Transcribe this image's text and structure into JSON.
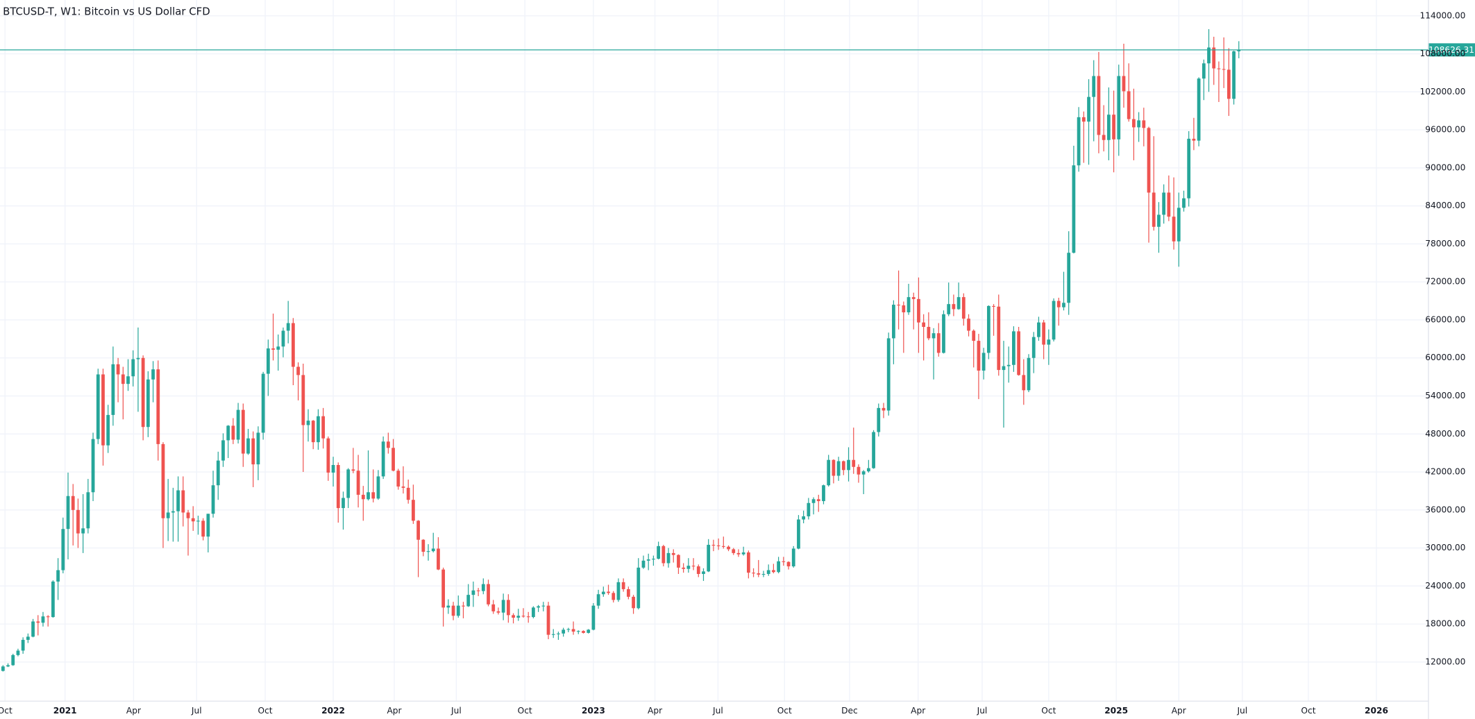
{
  "chart_data": {
    "type": "candlestick",
    "title": "BTCUSD-T, W1: Bitcoin vs US Dollar CFD",
    "up_color": "#26a69a",
    "down_color": "#ef5350",
    "grid": true,
    "price_line": true,
    "xlim": [
      -0.6,
      284.8
    ],
    "xticks": [
      {
        "value": 0.4,
        "label": "Oct"
      },
      {
        "value": 12.4,
        "label": "2021"
      },
      {
        "value": 26.1,
        "label": "Apr"
      },
      {
        "value": 38.7,
        "label": "Jul"
      },
      {
        "value": 52.4,
        "label": "Oct"
      },
      {
        "value": 66,
        "label": "2022"
      },
      {
        "value": 78.2,
        "label": "Apr"
      },
      {
        "value": 90.6,
        "label": "Jul"
      },
      {
        "value": 104.3,
        "label": "Oct"
      },
      {
        "value": 118,
        "label": "2023"
      },
      {
        "value": 130.3,
        "label": "Apr"
      },
      {
        "value": 142.9,
        "label": "Jul"
      },
      {
        "value": 156.2,
        "label": "Oct"
      },
      {
        "value": 169.2,
        "label": "Dec"
      },
      {
        "value": 182.9,
        "label": "Apr"
      },
      {
        "value": 195.7,
        "label": "Jul"
      },
      {
        "value": 209,
        "label": "Oct"
      },
      {
        "value": 222.5,
        "label": "2025"
      },
      {
        "value": 235,
        "label": "Apr"
      },
      {
        "value": 247.7,
        "label": "Jul"
      },
      {
        "value": 260.9,
        "label": "Oct"
      },
      {
        "value": 274.5,
        "label": "2026"
      }
    ],
    "ylim": [
      5900,
      116500
    ],
    "yticks": [
      {
        "value": 12000,
        "label": "12000.00"
      },
      {
        "value": 18000,
        "label": "18000.00"
      },
      {
        "value": 24000,
        "label": "24000.00"
      },
      {
        "value": 30000,
        "label": "30000.00"
      },
      {
        "value": 36000,
        "label": "36000.00"
      },
      {
        "value": 42000,
        "label": "42000.00"
      },
      {
        "value": 48000,
        "label": "48000.00"
      },
      {
        "value": 54000,
        "label": "54000.00"
      },
      {
        "value": 60000,
        "label": "60000.00"
      },
      {
        "value": 66000,
        "label": "66000.00"
      },
      {
        "value": 72000,
        "label": "72000.00"
      },
      {
        "value": 78000,
        "label": "78000.00"
      },
      {
        "value": 84000,
        "label": "84000.00"
      },
      {
        "value": 90000,
        "label": "90000.00"
      },
      {
        "value": 96000,
        "label": "96000.00"
      },
      {
        "value": 102000,
        "label": "102000.00"
      },
      {
        "value": 108000,
        "label": "108000.00"
      },
      {
        "value": 114000,
        "label": "114000.00"
      }
    ],
    "open": [
      10600,
      11300,
      11500,
      13100,
      13800,
      15500,
      16000,
      18400,
      18200,
      19200,
      19100,
      24700,
      26500,
      33000,
      38200,
      36000,
      32300,
      33100,
      38800,
      47200,
      57400,
      46200,
      51000,
      59000,
      57400,
      55900,
      57100,
      59800,
      60000,
      49100,
      56600,
      58200,
      46400,
      34700,
      35600,
      35800,
      39100,
      35600,
      34700,
      34200,
      34300,
      31800,
      35400,
      39900,
      43800,
      47000,
      49300,
      47100,
      51800,
      44900,
      47300,
      43200,
      48200,
      57500,
      61500,
      61300,
      61800,
      64300,
      65500,
      58600,
      57300,
      49400,
      50100,
      46700,
      50800,
      47300,
      41900,
      43100,
      36300,
      37900,
      42400,
      42200,
      38400,
      37700,
      38800,
      37800,
      41300,
      46800,
      45800,
      42200,
      39700,
      39500,
      37600,
      34300,
      31300,
      29400,
      29500,
      29900,
      26600,
      20600,
      20900,
      19300,
      20900,
      20800,
      22600,
      23300,
      23200,
      24300,
      21100,
      20000,
      19800,
      21800,
      19400,
      19000,
      19300,
      19200,
      19100,
      20600,
      20800,
      20900,
      16300,
      16400,
      16500,
      17100,
      17200,
      16800,
      16900,
      16600,
      17100,
      20900,
      22700,
      23100,
      22900,
      21800,
      24600,
      23500,
      22300,
      20500,
      26900,
      28000,
      28200,
      28300,
      30300,
      27600,
      29200,
      28900,
      26900,
      26700,
      27200,
      27100,
      25900,
      26300,
      30500,
      30400,
      30300,
      30200,
      29800,
      29200,
      29000,
      29300,
      26100,
      26000,
      25800,
      25900,
      26500,
      26200,
      27900,
      27800,
      27100,
      29900,
      34500,
      35000,
      37100,
      37700,
      37400,
      39900,
      43900,
      41400,
      43700,
      42300,
      43900,
      42800,
      41600,
      42100,
      42600,
      48300,
      52100,
      51700,
      63100,
      68400,
      68300,
      67200,
      69600,
      69300,
      65600,
      64900,
      63100,
      63900,
      60800,
      66900,
      68500,
      67700,
      69600,
      66200,
      64300,
      62700,
      58000,
      60800,
      68200,
      68100,
      58100,
      58700,
      58900,
      64200,
      57300,
      54900,
      60000,
      63300,
      65600,
      62100,
      62900,
      69000,
      68000,
      68700,
      76600,
      90400,
      98000,
      97300,
      101200,
      104500,
      95200,
      94400,
      98400,
      94500,
      104500,
      102100,
      97700,
      96400,
      97500,
      96300,
      86100,
      80700,
      82600,
      86100,
      82300,
      78400,
      83700,
      85200,
      94600,
      94300,
      104100,
      106500,
      109000,
      105700,
      105600,
      105500,
      100900,
      108400
    ],
    "high": [
      11500,
      11800,
      13300,
      14100,
      15900,
      16500,
      18800,
      19400,
      19900,
      19400,
      24900,
      28400,
      34800,
      41900,
      40100,
      37800,
      38500,
      40900,
      48200,
      58300,
      58300,
      52600,
      61800,
      60000,
      58600,
      59800,
      61200,
      64800,
      60400,
      57900,
      59500,
      59600,
      46700,
      40900,
      39500,
      41300,
      41300,
      36000,
      36600,
      35100,
      34700,
      35400,
      42200,
      45200,
      48100,
      49400,
      50500,
      52900,
      52800,
      48800,
      48400,
      49200,
      57800,
      62900,
      67000,
      63700,
      64800,
      69000,
      66300,
      59300,
      59100,
      51900,
      50200,
      51900,
      52100,
      47600,
      44400,
      43500,
      38900,
      42600,
      45800,
      44700,
      39800,
      45400,
      42400,
      42300,
      47600,
      48200,
      47200,
      42500,
      42900,
      40800,
      40000,
      34400,
      31400,
      30600,
      32400,
      31700,
      26900,
      21900,
      21500,
      22500,
      21500,
      24300,
      24700,
      23700,
      25200,
      25000,
      21800,
      20600,
      22800,
      22700,
      19700,
      20400,
      20500,
      19900,
      20800,
      21000,
      21500,
      21500,
      17200,
      16800,
      17400,
      17400,
      18400,
      17000,
      17000,
      17200,
      21300,
      23400,
      23900,
      24200,
      23200,
      25200,
      25200,
      23900,
      22600,
      28400,
      28800,
      29100,
      28800,
      31000,
      30500,
      30000,
      29800,
      29000,
      27600,
      28400,
      28400,
      27400,
      26800,
      31400,
      31300,
      31500,
      31800,
      30400,
      30000,
      29800,
      30200,
      29600,
      26800,
      28100,
      26400,
      27400,
      27500,
      28600,
      28600,
      27900,
      30300,
      35200,
      35900,
      37900,
      38000,
      38400,
      40000,
      44700,
      44000,
      44400,
      43800,
      45900,
      49000,
      43200,
      42300,
      43900,
      48600,
      52800,
      52900,
      64000,
      69100,
      73800,
      68900,
      71700,
      70300,
      72700,
      66900,
      67200,
      64700,
      65500,
      67500,
      71900,
      70000,
      71900,
      70200,
      66900,
      64500,
      63800,
      61600,
      68300,
      68500,
      70000,
      62700,
      61800,
      65000,
      64900,
      59800,
      60600,
      64100,
      66500,
      66000,
      64500,
      69400,
      69500,
      73600,
      80000,
      93500,
      99600,
      98900,
      104000,
      107000,
      108300,
      99900,
      102700,
      102200,
      106300,
      109600,
      106500,
      102500,
      98800,
      99500,
      96500,
      95000,
      84600,
      87400,
      88800,
      88500,
      86100,
      86400,
      95800,
      97900,
      104300,
      107100,
      111900,
      110700,
      106800,
      110600,
      108900,
      108500,
      110000
    ],
    "low": [
      10500,
      11200,
      11400,
      12900,
      13300,
      15000,
      15900,
      16200,
      17600,
      17600,
      19000,
      21800,
      26000,
      28200,
      30400,
      30000,
      29200,
      32300,
      37400,
      46400,
      43000,
      45000,
      49300,
      53000,
      50300,
      54800,
      55500,
      51500,
      47000,
      47500,
      53000,
      43800,
      30000,
      31100,
      31000,
      31000,
      33400,
      28800,
      32700,
      32100,
      31200,
      29300,
      34800,
      37600,
      42800,
      44200,
      46400,
      46500,
      42800,
      44700,
      39600,
      40700,
      47100,
      54000,
      59600,
      58000,
      60100,
      62300,
      55700,
      53300,
      42000,
      46800,
      45600,
      45500,
      45700,
      40600,
      39700,
      34000,
      32900,
      36300,
      41800,
      36400,
      34300,
      37500,
      37200,
      37600,
      40900,
      44900,
      42100,
      39200,
      38600,
      37000,
      33800,
      25400,
      28700,
      28000,
      29300,
      26500,
      17600,
      19600,
      18600,
      19000,
      18900,
      20700,
      20700,
      22400,
      22700,
      20800,
      19600,
      19500,
      18600,
      18200,
      18100,
      18500,
      19000,
      18200,
      18900,
      19900,
      20000,
      15600,
      15800,
      15500,
      16000,
      16700,
      16300,
      16400,
      16500,
      16500,
      17000,
      20400,
      22300,
      22600,
      21400,
      21500,
      23100,
      21900,
      19600,
      20300,
      26700,
      26500,
      27200,
      28200,
      27100,
      26900,
      27700,
      25900,
      26100,
      26100,
      26500,
      25400,
      24800,
      26200,
      29500,
      29700,
      29900,
      29500,
      28900,
      28600,
      28800,
      25200,
      25400,
      25400,
      25400,
      25600,
      26000,
      26000,
      27200,
      26600,
      26900,
      29800,
      33900,
      34500,
      35300,
      35700,
      36900,
      39700,
      40200,
      40600,
      41500,
      40500,
      41700,
      40300,
      38500,
      41900,
      42500,
      47600,
      50500,
      50900,
      59000,
      64500,
      60800,
      66800,
      64500,
      60800,
      59600,
      62800,
      56600,
      60200,
      60700,
      66600,
      66600,
      67600,
      65100,
      63400,
      58500,
      53500,
      56600,
      59800,
      63500,
      57200,
      49000,
      56100,
      57800,
      57200,
      52600,
      54600,
      57600,
      62700,
      59800,
      58900,
      62600,
      65100,
      67500,
      66800,
      76500,
      89400,
      90800,
      90500,
      94200,
      92300,
      92600,
      91200,
      89300,
      91900,
      99500,
      97300,
      91200,
      94100,
      93400,
      78200,
      80100,
      76600,
      81200,
      81600,
      77100,
      74400,
      83100,
      83900,
      92800,
      93400,
      100700,
      102000,
      103100,
      100400,
      102600,
      98200,
      100000,
      107300
    ],
    "close": [
      11300,
      11500,
      13100,
      13800,
      15500,
      16000,
      18400,
      18200,
      19200,
      19100,
      24700,
      26500,
      33000,
      38200,
      36000,
      32300,
      33100,
      38800,
      47200,
      57400,
      46200,
      51000,
      59000,
      57400,
      55900,
      57100,
      59800,
      60000,
      49100,
      56600,
      58200,
      46400,
      34700,
      35600,
      35800,
      39100,
      35600,
      34700,
      34200,
      34300,
      31800,
      35400,
      39900,
      43800,
      47000,
      49300,
      47100,
      51800,
      44900,
      47300,
      43200,
      48200,
      57500,
      61500,
      61300,
      61800,
      64300,
      65500,
      58600,
      57300,
      49400,
      50100,
      46700,
      50800,
      47300,
      41900,
      43100,
      36300,
      37900,
      42400,
      42200,
      38400,
      37700,
      38800,
      37800,
      41300,
      46800,
      45800,
      42200,
      39700,
      39500,
      37600,
      34300,
      31300,
      29400,
      29500,
      29900,
      26600,
      20600,
      20900,
      19300,
      20900,
      20800,
      22600,
      23300,
      23200,
      24300,
      21100,
      20000,
      19800,
      21800,
      19400,
      19000,
      19300,
      19200,
      19100,
      20600,
      20800,
      20900,
      16300,
      16400,
      16500,
      17100,
      17200,
      16800,
      16900,
      16600,
      17100,
      20900,
      22700,
      23100,
      22900,
      21800,
      24600,
      23500,
      22300,
      20500,
      26900,
      28000,
      28200,
      28300,
      30300,
      27600,
      29200,
      28900,
      26900,
      26700,
      27200,
      27100,
      25900,
      26300,
      30500,
      30400,
      30300,
      30200,
      29800,
      29200,
      29000,
      29300,
      26100,
      26000,
      25800,
      25900,
      26500,
      26200,
      27900,
      27800,
      27100,
      29900,
      34500,
      35000,
      37100,
      37700,
      37400,
      39900,
      43900,
      41400,
      43700,
      42300,
      43900,
      42800,
      41600,
      42100,
      42600,
      48300,
      52100,
      51700,
      63100,
      68400,
      68300,
      67200,
      69600,
      69300,
      65600,
      64900,
      63100,
      63900,
      60800,
      66900,
      68500,
      67700,
      69600,
      66200,
      64300,
      62700,
      58000,
      60800,
      68200,
      68100,
      58100,
      58700,
      58900,
      64200,
      57300,
      54900,
      60000,
      63300,
      65600,
      62100,
      62900,
      69000,
      68000,
      68700,
      76600,
      90400,
      98000,
      97300,
      101200,
      104500,
      95200,
      94400,
      98400,
      94500,
      104500,
      102100,
      97700,
      96400,
      97500,
      96300,
      86100,
      80700,
      82600,
      86100,
      82300,
      78400,
      83700,
      85200,
      94600,
      94300,
      104100,
      106500,
      109000,
      105700,
      105600,
      105500,
      100900,
      108400,
      108626.31
    ]
  }
}
